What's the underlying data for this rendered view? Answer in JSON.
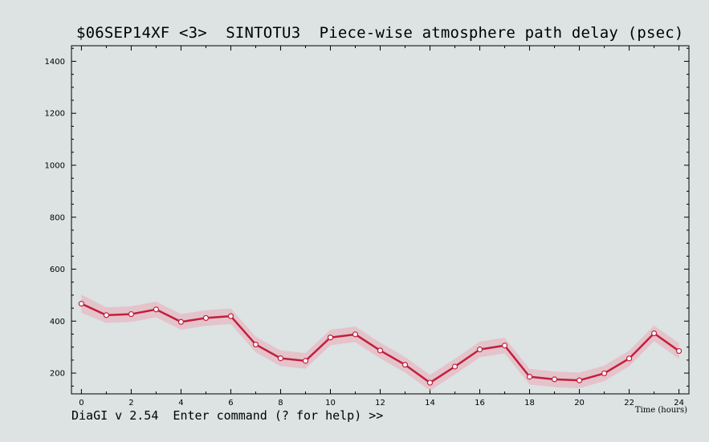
{
  "window": {
    "title": "$06SEP14XF <3>  SINTOTU3  Piece-wise atmosphere path delay (psec)",
    "status_line": "DiaGI v 2.54  Enter command (? for help) >>"
  },
  "colors": {
    "background": "#dde2e2",
    "series_line": "#c0203c",
    "error_band": "#e9a9b8",
    "marker_fill": "#ffffff"
  },
  "chart_data": {
    "type": "line",
    "title": "$06SEP14XF <3>  SINTOTU3  Piece-wise atmosphere path delay (psec)",
    "xlabel": "Time (hours)",
    "ylabel": "",
    "xlim": [
      -0.4,
      24.4
    ],
    "ylim": [
      120,
      1460
    ],
    "x_ticks": [
      0,
      2,
      4,
      6,
      8,
      10,
      12,
      14,
      16,
      18,
      20,
      22,
      24
    ],
    "y_ticks": [
      200,
      400,
      600,
      800,
      1000,
      1200,
      1400
    ],
    "grid": false,
    "series": [
      {
        "x": [
          0,
          1,
          2,
          3,
          4,
          5,
          6,
          7,
          8,
          9,
          10,
          11,
          12,
          13,
          14,
          15,
          16,
          17,
          18,
          19,
          20,
          21,
          22,
          23,
          24
        ],
        "values": [
          467,
          423,
          427,
          445,
          397,
          412,
          419,
          310,
          257,
          247,
          337,
          349,
          287,
          232,
          163,
          225,
          291,
          306,
          186,
          176,
          172,
          199,
          256,
          353,
          285
        ],
        "error": [
          35,
          30,
          30,
          30,
          30,
          30,
          30,
          30,
          30,
          30,
          30,
          30,
          30,
          30,
          30,
          30,
          30,
          30,
          30,
          30,
          30,
          30,
          30,
          30,
          30
        ]
      }
    ]
  }
}
